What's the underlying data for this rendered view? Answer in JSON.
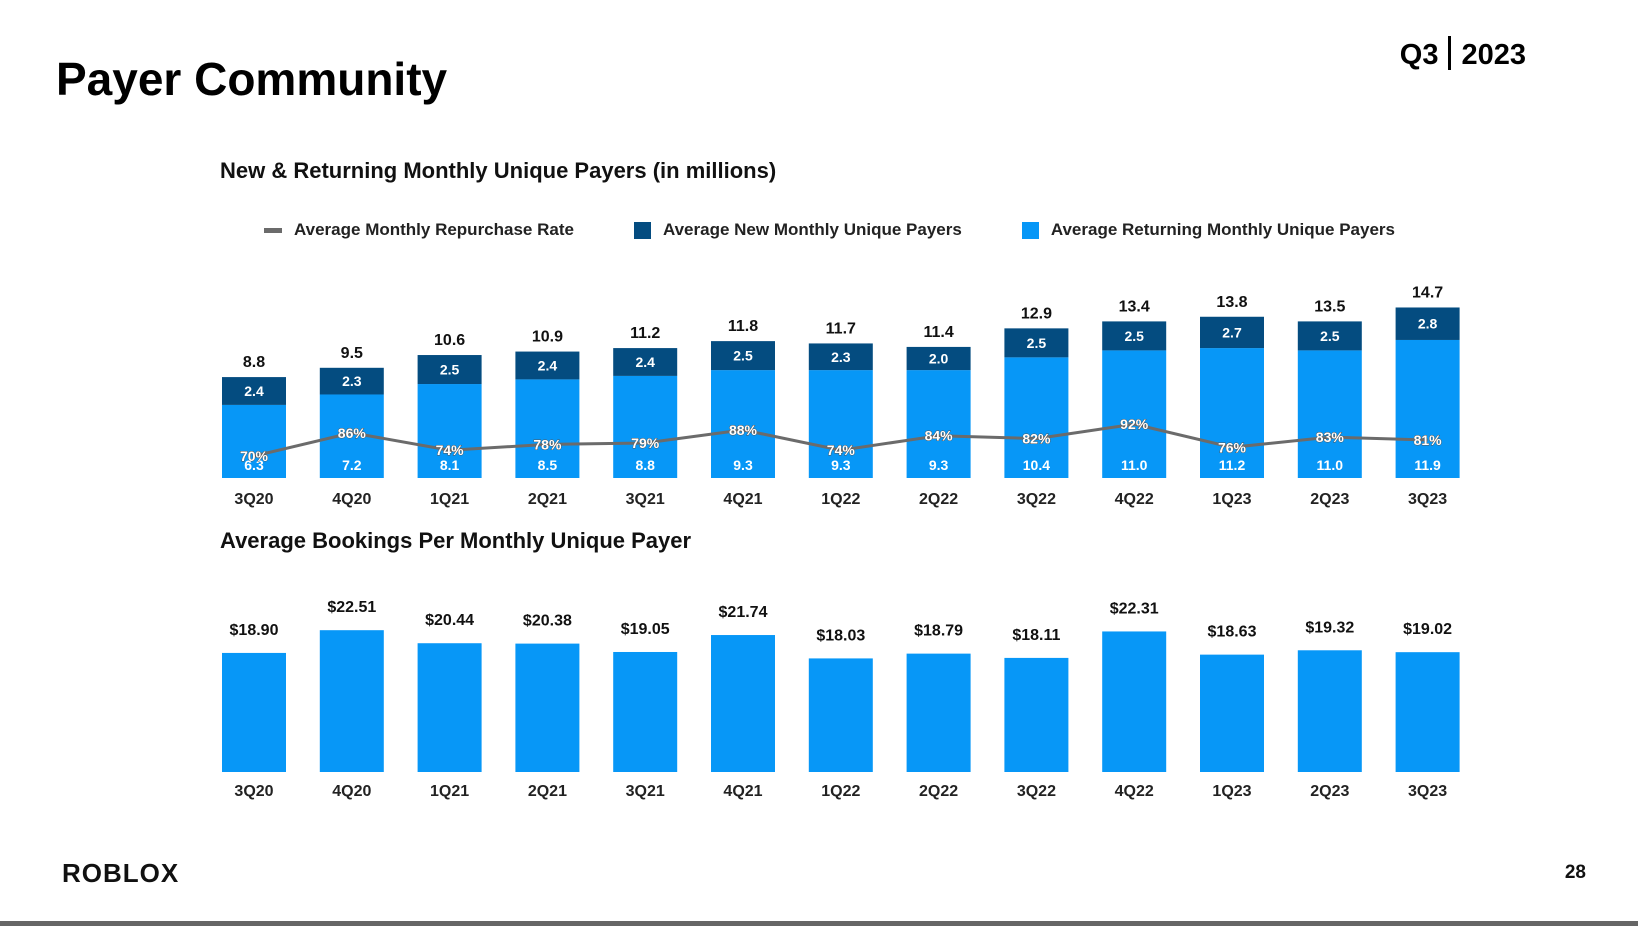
{
  "title": "Payer Community",
  "period": {
    "quarter": "Q3",
    "year": "2023"
  },
  "logo": "ROBLOX",
  "page_number": "28",
  "colors": {
    "returning": "#0797f7",
    "new": "#044c80",
    "rate_line": "#6b6b6b"
  },
  "chart_data": [
    {
      "type": "bar",
      "stacked": true,
      "title": "New & Returning Monthly Unique Payers (in millions)",
      "categories": [
        "3Q20",
        "4Q20",
        "1Q21",
        "2Q21",
        "3Q21",
        "4Q21",
        "1Q22",
        "2Q22",
        "3Q22",
        "4Q22",
        "1Q23",
        "2Q23",
        "3Q23"
      ],
      "series": [
        {
          "name": "Average Returning Monthly Unique Payers",
          "values": [
            6.3,
            7.2,
            8.1,
            8.5,
            8.8,
            9.3,
            9.3,
            9.3,
            10.4,
            11.0,
            11.2,
            11.0,
            11.9
          ]
        },
        {
          "name": "Average New Monthly Unique Payers",
          "values": [
            2.4,
            2.3,
            2.5,
            2.4,
            2.4,
            2.5,
            2.3,
            2.0,
            2.5,
            2.5,
            2.7,
            2.5,
            2.8
          ]
        }
      ],
      "totals": [
        8.8,
        9.5,
        10.6,
        10.9,
        11.2,
        11.8,
        11.7,
        11.4,
        12.9,
        13.4,
        13.8,
        13.5,
        14.7
      ],
      "line": {
        "name": "Average Monthly Repurchase Rate",
        "values": [
          70,
          86,
          74,
          78,
          79,
          88,
          74,
          84,
          82,
          92,
          76,
          83,
          81
        ],
        "unit": "%"
      },
      "legend": [
        "Average Monthly Repurchase Rate",
        "Average New Monthly Unique Payers",
        "Average Returning Monthly Unique Payers"
      ]
    },
    {
      "type": "bar",
      "title": "Average Bookings Per Monthly Unique Payer",
      "categories": [
        "3Q20",
        "4Q20",
        "1Q21",
        "2Q21",
        "3Q21",
        "4Q21",
        "1Q22",
        "2Q22",
        "3Q22",
        "4Q22",
        "1Q23",
        "2Q23",
        "3Q23"
      ],
      "values": [
        18.9,
        22.51,
        20.44,
        20.38,
        19.05,
        21.74,
        18.03,
        18.79,
        18.11,
        22.31,
        18.63,
        19.32,
        19.02
      ],
      "labels": [
        "$18.90",
        "$22.51",
        "$20.44",
        "$20.38",
        "$19.05",
        "$21.74",
        "$18.03",
        "$18.79",
        "$18.11",
        "$22.31",
        "$18.63",
        "$19.32",
        "$19.02"
      ]
    }
  ]
}
